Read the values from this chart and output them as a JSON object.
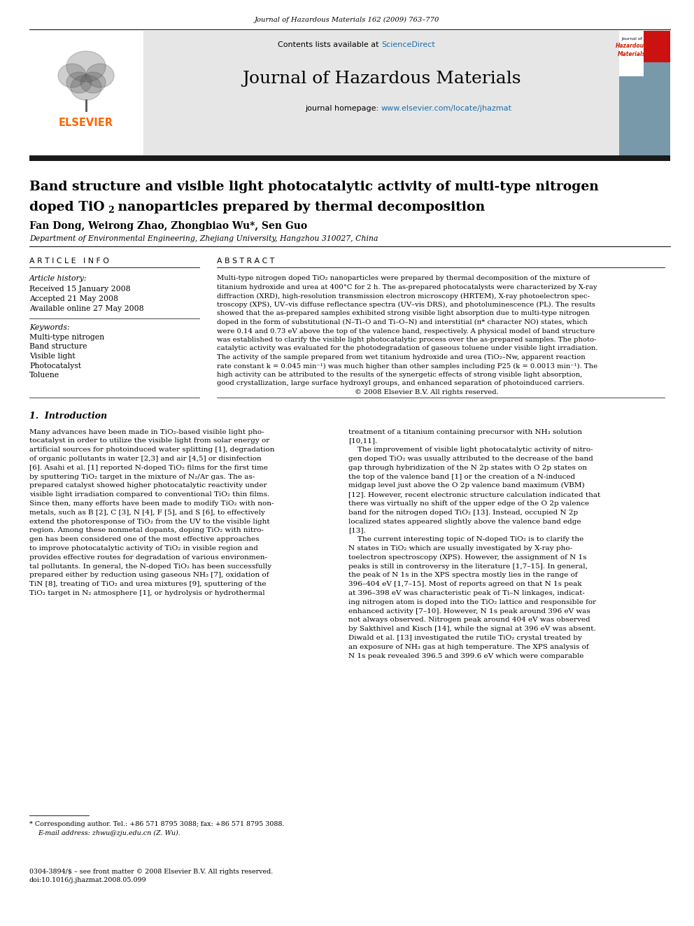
{
  "page_width": 9.92,
  "page_height": 13.23,
  "dpi": 100,
  "bg_color": "#ffffff",
  "journal_ref": "Journal of Hazardous Materials 162 (2009) 763–770",
  "sciencedirect_color": "#1a6eab",
  "homepage_url_color": "#1a6eab",
  "elsevier_color": "#ff6600",
  "journal_name": "Journal of Hazardous Materials",
  "title_line1": "Band structure and visible light photocatalytic activity of multi-type nitrogen",
  "title_line2a": "doped TiO",
  "title_line2b": "2",
  "title_line2c": " nanoparticles prepared by thermal decomposition",
  "authors": "Fan Dong, Weirong Zhao, Zhongbiao Wu*, Sen Guo",
  "affiliation": "Department of Environmental Engineering, Zhejiang University, Hangzhou 310027, China",
  "article_history_label": "Article history:",
  "received": "Received 15 January 2008",
  "accepted": "Accepted 21 May 2008",
  "available": "Available online 27 May 2008",
  "keywords_label": "Keywords:",
  "keywords": [
    "Multi-type nitrogen",
    "Band structure",
    "Visible light",
    "Photocatalyst",
    "Toluene"
  ],
  "section1_header": "1.  Introduction",
  "footnote_star": "* Corresponding author. Tel.: +86 571 8795 3088; fax: +86 571 8795 3088.",
  "footnote_email": "E-mail address: zhwu@zju.edu.cn (Z. Wu).",
  "footnote_bottom1": "0304-3894/$ – see front matter © 2008 Elsevier B.V. All rights reserved.",
  "footnote_bottom2": "doi:10.1016/j.jhazmat.2008.05.099",
  "abstract_lines": [
    "Multi-type nitrogen doped TiO₂ nanoparticles were prepared by thermal decomposition of the mixture of",
    "titanium hydroxide and urea at 400°C for 2 h. The as-prepared photocatalysts were characterized by X-ray",
    "diffraction (XRD), high-resolution transmission electron microscopy (HRTEM), X-ray photoelectron spec-",
    "troscopy (XPS), UV–vis diffuse reflectance spectra (UV–vis DRS), and photoluminescence (PL). The results",
    "showed that the as-prepared samples exhibited strong visible light absorption due to multi-type nitrogen",
    "doped in the form of substitutional (N–Ti–O and Ti–O–N) and interstitial (π* character NO) states, which",
    "were 0.14 and 0.73 eV above the top of the valence band, respectively. A physical model of band structure",
    "was established to clarify the visible light photocatalytic process over the as-prepared samples. The photo-",
    "catalytic activity was evaluated for the photodegradation of gaseous toluene under visible light irradiation.",
    "The activity of the sample prepared from wet titanium hydroxide and urea (TiO₂–Nw, apparent reaction",
    "rate constant k = 0.045 min⁻¹) was much higher than other samples including P25 (k = 0.0013 min⁻¹). The",
    "high activity can be attributed to the results of the synergetic effects of strong visible light absorption,",
    "good crystallization, large surface hydroxyl groups, and enhanced separation of photoinduced carriers.",
    "                                                               © 2008 Elsevier B.V. All rights reserved."
  ],
  "intro_left_lines": [
    "Many advances have been made in TiO₂-based visible light pho-",
    "tocatalyst in order to utilize the visible light from solar energy or",
    "artificial sources for photoinduced water splitting [1], degradation",
    "of organic pollutants in water [2,3] and air [4,5] or disinfection",
    "[6]. Asahi et al. [1] reported N-doped TiO₂ films for the first time",
    "by sputtering TiO₂ target in the mixture of N₂/Ar gas. The as-",
    "prepared catalyst showed higher photocatalytic reactivity under",
    "visible light irradiation compared to conventional TiO₂ thin films.",
    "Since then, many efforts have been made to modify TiO₂ with non-",
    "metals, such as B [2], C [3], N [4], F [5], and S [6], to effectively",
    "extend the photoresponse of TiO₂ from the UV to the visible light",
    "region. Among these nonmetal dopants, doping TiO₂ with nitro-",
    "gen has been considered one of the most effective approaches",
    "to improve photocatalytic activity of TiO₂ in visible region and",
    "provides effective routes for degradation of various environmen-",
    "tal pollutants. In general, the N-doped TiO₂ has been successfully",
    "prepared either by reduction using gaseous NH₃ [7], oxidation of",
    "TiN [8], treating of TiO₂ and urea mixtures [9], sputtering of the",
    "TiO₂ target in N₂ atmosphere [1], or hydrolysis or hydrothermal"
  ],
  "intro_right_lines": [
    "treatment of a titanium containing precursor with NH₃ solution",
    "[10,11].",
    "    The improvement of visible light photocatalytic activity of nitro-",
    "gen doped TiO₂ was usually attributed to the decrease of the band",
    "gap through hybridization of the N 2p states with O 2p states on",
    "the top of the valence band [1] or the creation of a N-induced",
    "midgap level just above the O 2p valence band maximum (VBM)",
    "[12]. However, recent electronic structure calculation indicated that",
    "there was virtually no shift of the upper edge of the O 2p valence",
    "band for the nitrogen doped TiO₂ [13]. Instead, occupied N 2p",
    "localized states appeared slightly above the valence band edge",
    "[13].",
    "    The current interesting topic of N-doped TiO₂ is to clarify the",
    "N states in TiO₂ which are usually investigated by X-ray pho-",
    "toelectron spectroscopy (XPS). However, the assignment of N 1s",
    "peaks is still in controversy in the literature [1,7–15]. In general,",
    "the peak of N 1s in the XPS spectra mostly lies in the range of",
    "396–404 eV [1,7–15]. Most of reports agreed on that N 1s peak",
    "at 396–398 eV was characteristic peak of Ti–N linkages, indicat-",
    "ing nitrogen atom is doped into the TiO₂ lattice and responsible for",
    "enhanced activity [7–10]. However, N 1s peak around 396 eV was",
    "not always observed. Nitrogen peak around 404 eV was observed",
    "by Sakthivel and Kisch [14], while the signal at 396 eV was absent.",
    "Diwald et al. [13] investigated the rutile TiO₂ crystal treated by",
    "an exposure of NH₃ gas at high temperature. The XPS analysis of",
    "N 1s peak revealed 396.5 and 399.6 eV which were comparable"
  ]
}
